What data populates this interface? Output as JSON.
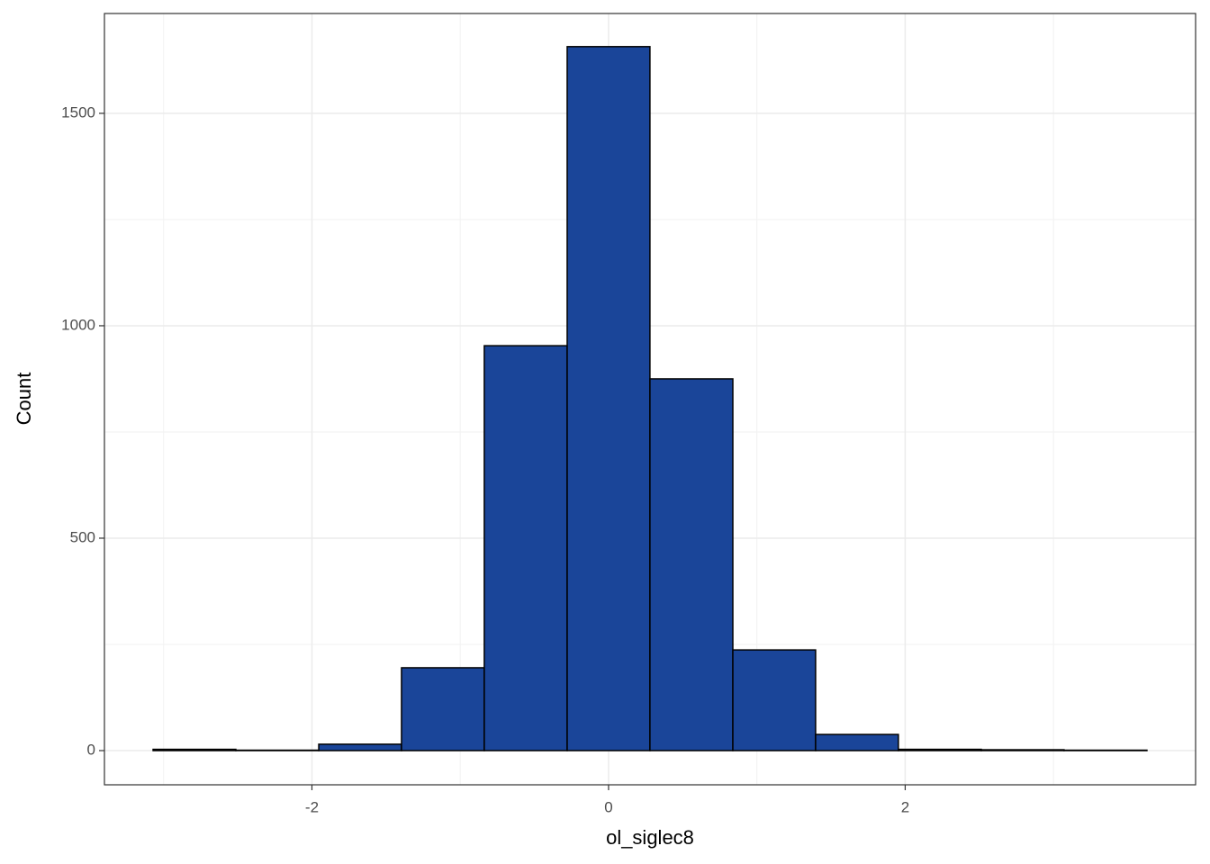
{
  "chart_data": {
    "type": "histogram",
    "x_label": "ol_siglec8",
    "y_label": "Count",
    "bins": [
      -3.071,
      -2.513,
      -1.954,
      -1.396,
      -0.838,
      -0.279,
      0.279,
      0.838,
      1.396,
      1.954,
      2.513,
      3.071,
      3.63
    ],
    "values": [
      3,
      1,
      15,
      195,
      953,
      1657,
      875,
      237,
      38,
      3,
      2,
      1
    ],
    "color": "#1a4599",
    "edge_color": "#000000",
    "xlim": [
      -3.399,
      3.958
    ],
    "ylim": [
      -80.5,
      1735
    ],
    "xticks": [
      -2,
      0,
      2
    ],
    "yticks": [
      0,
      500,
      1000,
      1500
    ],
    "xminor": [
      -3,
      -1,
      1,
      3
    ],
    "yminor": [
      250,
      750,
      1250
    ],
    "grid": true
  }
}
